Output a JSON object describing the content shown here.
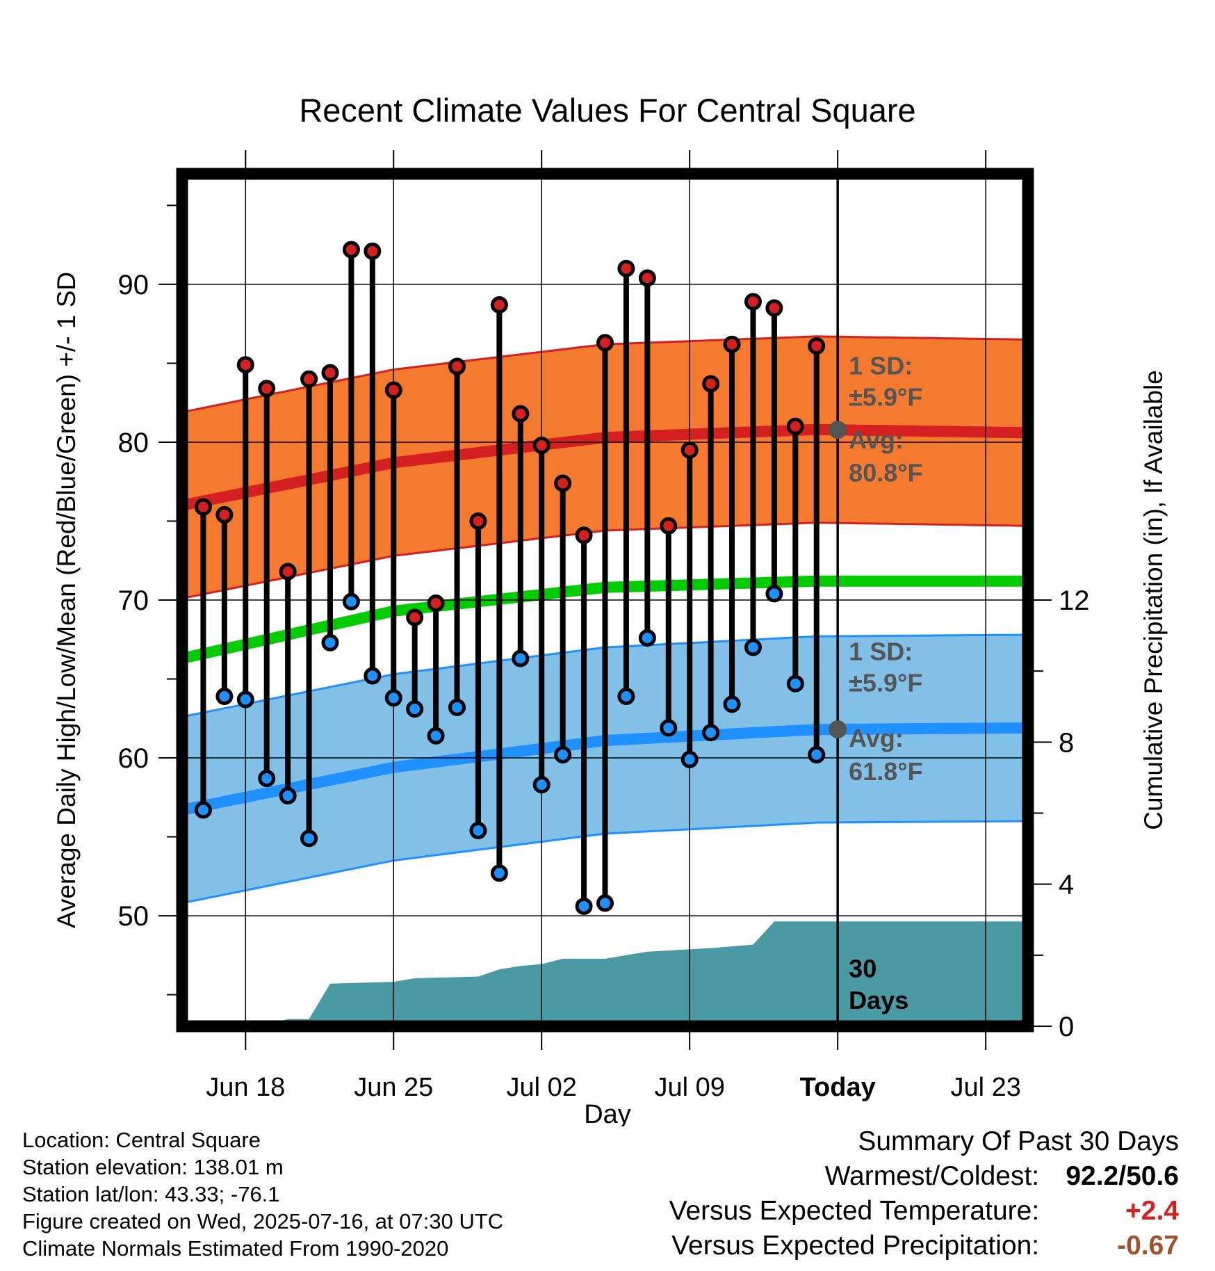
{
  "chart_data": {
    "type": "line",
    "title": "Recent Climate Values For Central Square",
    "xlabel": "Day",
    "ylabel": "Average Daily High/Low/Mean (Red/Blue/Green) +/- 1 SD",
    "y2label": "Cumulative Precipitation (in), If Available",
    "xlim": [
      "2025-06-15",
      "2025-07-25"
    ],
    "ylim": [
      43,
      97
    ],
    "y2lim": [
      0,
      24
    ],
    "x_ticks": [
      "Jun 18",
      "Jun 25",
      "Jul 02",
      "Jul 09",
      "Today",
      "Jul 23"
    ],
    "y_ticks": [
      50,
      60,
      70,
      80,
      90
    ],
    "y2_ticks": [
      0,
      4,
      8,
      12
    ],
    "today": "2025-07-16",
    "grid": true,
    "dates": [
      "2025-06-16",
      "2025-06-17",
      "2025-06-18",
      "2025-06-19",
      "2025-06-20",
      "2025-06-21",
      "2025-06-22",
      "2025-06-23",
      "2025-06-24",
      "2025-06-25",
      "2025-06-26",
      "2025-06-27",
      "2025-06-28",
      "2025-06-29",
      "2025-06-30",
      "2025-07-01",
      "2025-07-02",
      "2025-07-03",
      "2025-07-04",
      "2025-07-05",
      "2025-07-06",
      "2025-07-07",
      "2025-07-08",
      "2025-07-09",
      "2025-07-10",
      "2025-07-11",
      "2025-07-12",
      "2025-07-13",
      "2025-07-14",
      "2025-07-15"
    ],
    "series": [
      {
        "name": "Daily High",
        "color": "#d42020",
        "values": [
          75.9,
          75.4,
          84.9,
          83.4,
          71.8,
          84.0,
          84.4,
          92.2,
          92.1,
          83.3,
          68.9,
          69.8,
          84.8,
          75.0,
          88.7,
          81.8,
          79.8,
          77.4,
          74.1,
          86.3,
          91.0,
          90.4,
          74.7,
          79.5,
          83.7,
          86.2,
          88.9,
          88.5,
          81.0,
          86.1
        ]
      },
      {
        "name": "Daily Low",
        "color": "#1e90ff",
        "values": [
          56.7,
          63.9,
          63.7,
          58.7,
          57.6,
          54.9,
          67.3,
          69.9,
          65.2,
          63.8,
          63.1,
          61.4,
          63.2,
          55.4,
          52.7,
          66.3,
          58.3,
          60.2,
          50.6,
          50.8,
          63.9,
          67.6,
          61.9,
          59.9,
          61.6,
          63.4,
          67.0,
          70.4,
          64.7,
          60.2
        ]
      }
    ],
    "normals": {
      "dates": [
        "2025-06-15",
        "2025-06-25",
        "2025-07-05",
        "2025-07-15",
        "2025-07-25"
      ],
      "high_avg": [
        76.0,
        78.7,
        80.3,
        80.8,
        80.6
      ],
      "high_sd": 5.9,
      "low_avg": [
        56.7,
        59.4,
        61.1,
        61.8,
        61.9
      ],
      "low_sd": 5.9,
      "mean_avg": [
        66.3,
        69.3,
        70.8,
        71.2,
        71.2
      ],
      "colors": {
        "high_band": "#f47a30",
        "high_line": "#d42020",
        "low_band": "#82c0e8",
        "low_line": "#1e90ff",
        "mean_line": "#00cc00",
        "precip": "#4a9aa4"
      }
    },
    "precipitation": {
      "dates": [
        "2025-06-15",
        "2025-06-18",
        "2025-06-19",
        "2025-06-20",
        "2025-06-21",
        "2025-06-22",
        "2025-06-25",
        "2025-06-26",
        "2025-06-29",
        "2025-06-30",
        "2025-07-01",
        "2025-07-02",
        "2025-07-03",
        "2025-07-05",
        "2025-07-06",
        "2025-07-07",
        "2025-07-10",
        "2025-07-11",
        "2025-07-12",
        "2025-07-13",
        "2025-07-25"
      ],
      "values": [
        0.0,
        0.0,
        0.05,
        0.2,
        0.2,
        1.2,
        1.25,
        1.35,
        1.4,
        1.6,
        1.7,
        1.75,
        1.9,
        1.9,
        2.0,
        2.1,
        2.2,
        2.25,
        2.3,
        2.95,
        2.95
      ]
    },
    "annotations": {
      "high_sd_label": "1 SD:",
      "high_sd_value": "±5.9°F",
      "high_avg_label": "Avg:",
      "high_avg_value": "80.8°F",
      "low_sd_label": "1 SD:",
      "low_sd_value": "±5.9°F",
      "low_avg_label": "Avg:",
      "low_avg_value": "61.8°F",
      "days_label_1": "30",
      "days_label_2": "Days"
    }
  },
  "footer": {
    "location": "Location: Central Square",
    "elevation": "Station elevation: 138.01 m",
    "latlon": "Station lat/lon: 43.33; -76.1",
    "created": "Figure created on Wed, 2025-07-16, at 07:30 UTC",
    "normals": "Climate Normals Estimated From 1990-2020"
  },
  "summary": {
    "title": "Summary Of Past 30 Days",
    "warm_cold_label": "Warmest/Coldest:",
    "warm_cold_value": "92.2/50.6",
    "temp_label": "Versus Expected Temperature:",
    "temp_value": "+2.4",
    "temp_color": "#d42020",
    "precip_label": "Versus Expected Precipitation:",
    "precip_value": "-0.67",
    "precip_color": "#a0522d"
  }
}
